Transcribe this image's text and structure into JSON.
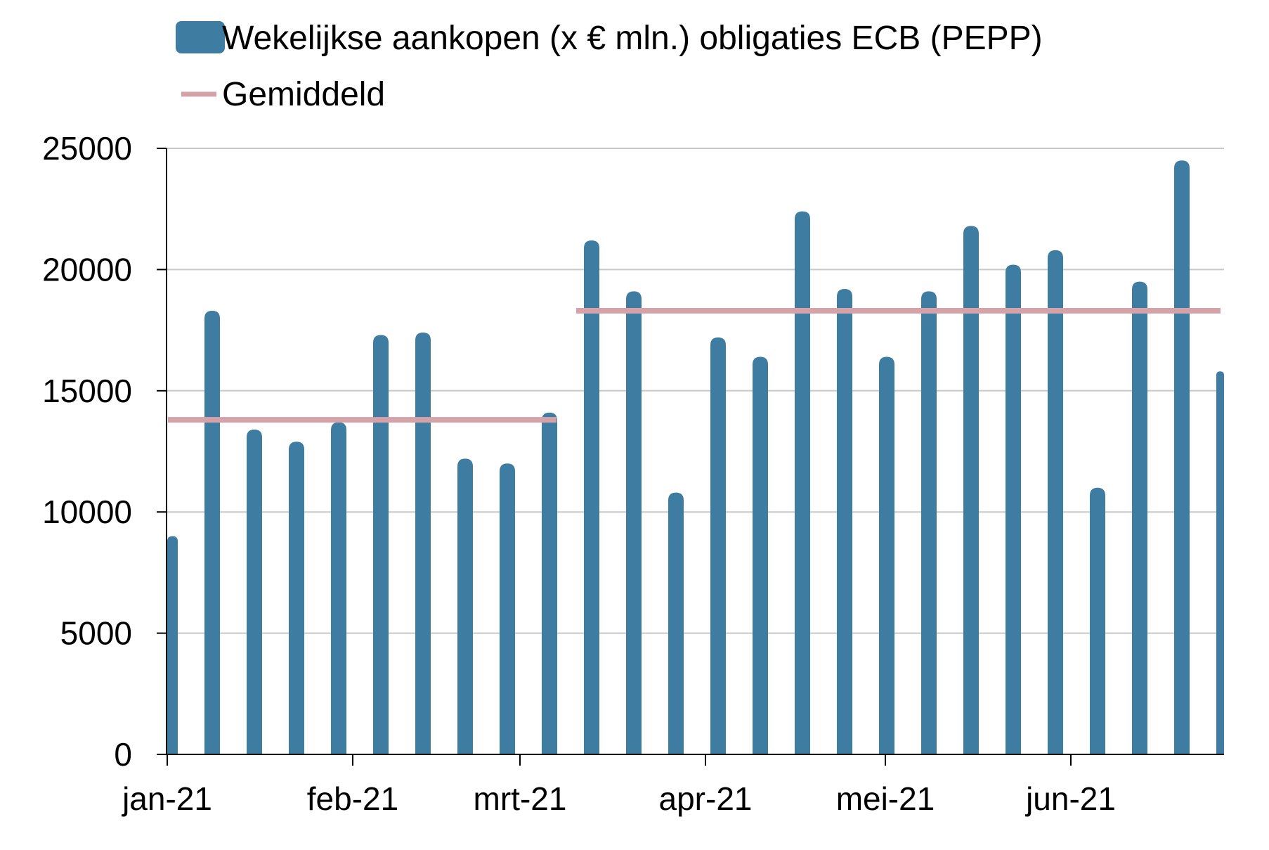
{
  "chart_data": {
    "type": "bar",
    "title": "",
    "xlabel": "",
    "ylabel": "",
    "ylim": [
      0,
      25000
    ],
    "yticks": [
      0,
      5000,
      10000,
      15000,
      20000,
      25000
    ],
    "grid": true,
    "legend_position": "top-left",
    "legend": [
      {
        "label": "Wekelijkse aankopen (x € mln.) obligaties ECB (PEPP)",
        "kind": "bar"
      },
      {
        "label": "Gemiddeld",
        "kind": "line"
      }
    ],
    "x_axis_labels": [
      "jan-21",
      "feb-21",
      "mrt-21",
      "apr-21",
      "mei-21",
      "jun-21"
    ],
    "series": [
      {
        "name": "Wekelijkse aankopen (x € mln.) obligaties ECB (PEPP)",
        "color": "#3f7ca1",
        "values": [
          9000,
          18300,
          13400,
          12900,
          13700,
          17300,
          17400,
          12200,
          12000,
          14100,
          21200,
          19100,
          10800,
          17200,
          16400,
          22400,
          19200,
          16400,
          19100,
          21800,
          20200,
          20800,
          11000,
          19500,
          24500,
          15800
        ]
      },
      {
        "name": "Gemiddeld",
        "color": "#d4a2a9",
        "segments": [
          {
            "from_week": 1,
            "to_week": 10,
            "value": 13800
          },
          {
            "from_week": 11,
            "to_week": 26,
            "value": 18300
          }
        ]
      }
    ]
  }
}
